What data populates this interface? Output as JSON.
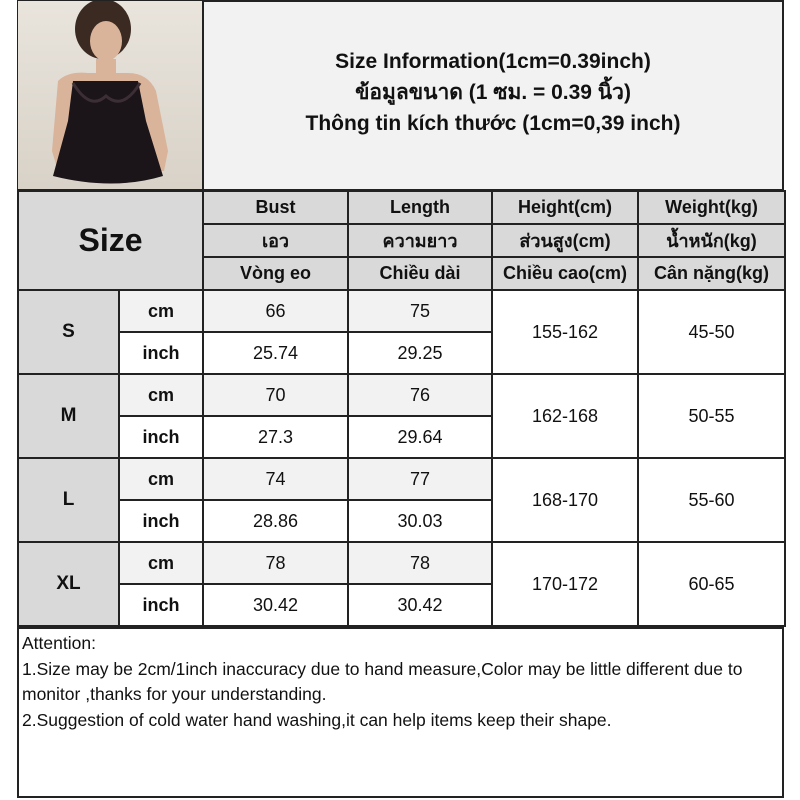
{
  "header": {
    "line1": "Size Information(1cm=0.39inch)",
    "line2": "ข้อมูลขนาด (1 ซม. = 0.39 นิ้ว)",
    "line3": "Thông tin kích thước (1cm=0,39 inch)"
  },
  "table": {
    "size_label": "Size",
    "columns": [
      [
        "Bust",
        "เอว",
        "Vòng eo"
      ],
      [
        "Length",
        "ความยาว",
        "Chiều dài"
      ],
      [
        "Height(cm)",
        "ส่วนสูง(cm)",
        "Chiều cao(cm)"
      ],
      [
        "Weight(kg)",
        "น้ำหนัก(kg)",
        "Cân nặng(kg)"
      ]
    ],
    "unit_cm": "cm",
    "unit_inch": "inch",
    "rows": [
      {
        "size": "S",
        "bust_cm": "66",
        "length_cm": "75",
        "bust_inch": "25.74",
        "length_inch": "29.25",
        "height": "155-162",
        "weight": "45-50"
      },
      {
        "size": "M",
        "bust_cm": "70",
        "length_cm": "76",
        "bust_inch": "27.3",
        "length_inch": "29.64",
        "height": "162-168",
        "weight": "50-55"
      },
      {
        "size": "L",
        "bust_cm": "74",
        "length_cm": "77",
        "bust_inch": "28.86",
        "length_inch": "30.03",
        "height": "168-170",
        "weight": "55-60"
      },
      {
        "size": "XL",
        "bust_cm": "78",
        "length_cm": "78",
        "bust_inch": "30.42",
        "length_inch": "30.42",
        "height": "170-172",
        "weight": "60-65"
      }
    ]
  },
  "notes": {
    "title": "Attention:",
    "n1": "1.Size may be 2cm/1inch inaccuracy due to hand measure,Color may be little different due to monitor ,thanks for your understanding.",
    "n2": "2.Suggestion of cold water hand washing,it can help items keep their shape."
  }
}
